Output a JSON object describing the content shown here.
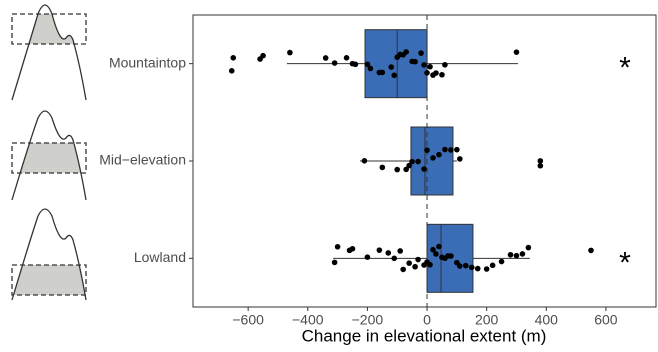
{
  "chart_data": {
    "type": "box",
    "x_label": "Change in elevational extent (m)",
    "categories": [
      "Mountaintop",
      "Mid−elevation",
      "Lowland"
    ],
    "color": "#3a6db5",
    "point_color": "#000000",
    "boxes": [
      {
        "whislo": -470,
        "q1": -208,
        "med": -100,
        "q3": 0,
        "whishi": 305
      },
      {
        "whislo": -225,
        "q1": -54,
        "med": -7,
        "q3": 87,
        "whishi": 100
      },
      {
        "whislo": -315,
        "q1": 0,
        "med": 47,
        "q3": 154,
        "whishi": 345
      }
    ],
    "points": [
      [
        -655,
        -650,
        -560,
        -550,
        -460,
        -340,
        -310,
        -270,
        -250,
        -240,
        -200,
        -190,
        -160,
        -150,
        -120,
        -110,
        -100,
        -90,
        -80,
        -70,
        -50,
        -40,
        -20,
        -10,
        0,
        10,
        20,
        30,
        50,
        60,
        300
      ],
      [
        -210,
        -150,
        -100,
        -70,
        -60,
        -50,
        -30,
        -10,
        0,
        20,
        40,
        60,
        80,
        100,
        110,
        380,
        380
      ],
      [
        -310,
        -300,
        -260,
        -250,
        -200,
        -160,
        -130,
        -110,
        -90,
        -80,
        -60,
        -40,
        -30,
        -10,
        0,
        10,
        20,
        30,
        40,
        50,
        60,
        70,
        80,
        100,
        110,
        130,
        150,
        170,
        200,
        220,
        250,
        280,
        300,
        320,
        340,
        550
      ]
    ],
    "significance": [
      "*",
      null,
      "*"
    ],
    "xlim": [
      -785,
      768
    ],
    "xticks": [
      {
        "value": -600,
        "label": "−600"
      },
      {
        "value": -400,
        "label": "−400"
      },
      {
        "value": -200,
        "label": "−200"
      },
      0,
      200,
      400,
      600
    ],
    "zero_line": true
  }
}
